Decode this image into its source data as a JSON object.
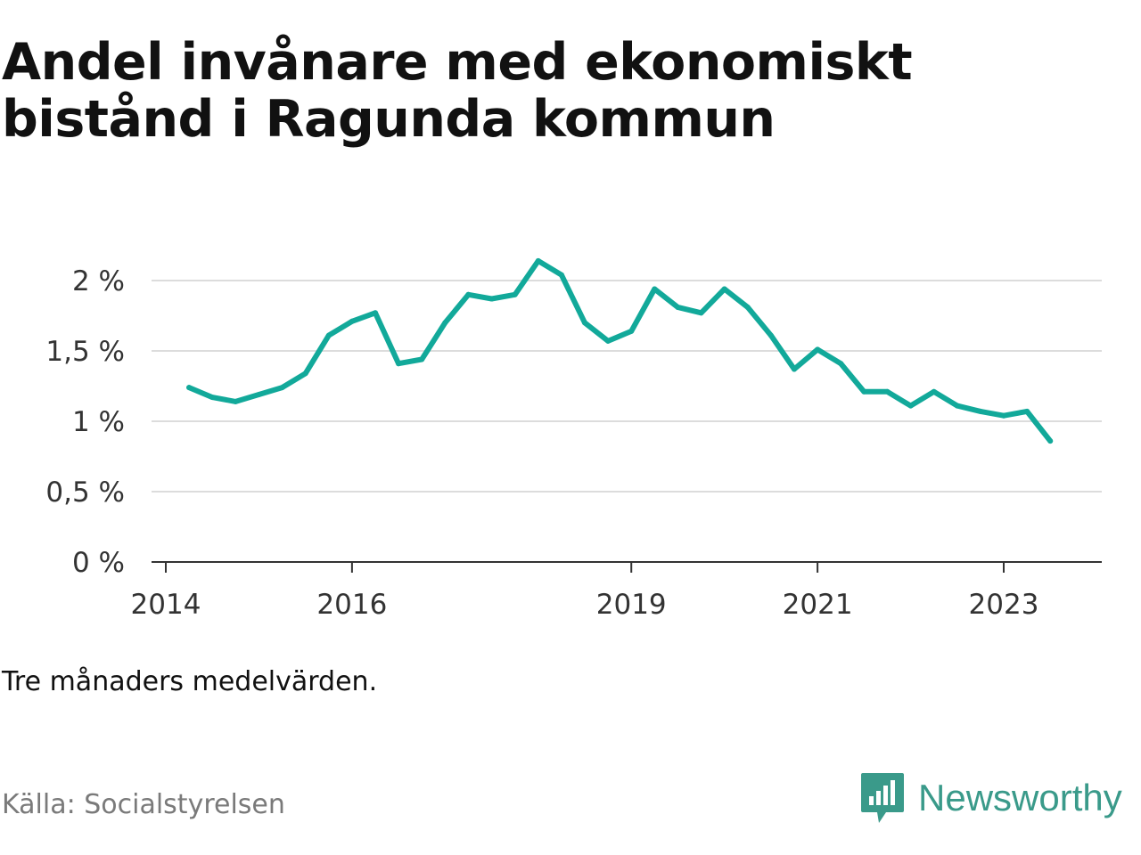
{
  "chart_data": {
    "type": "line",
    "title": "Andel invånare med ekonomiskt bistånd i Ragunda kommun",
    "note": "Tre månaders medelvärden.",
    "source": "Källa: Socialstyrelsen",
    "x_ticks": [
      {
        "year": 2014,
        "label": "2014"
      },
      {
        "year": 2016,
        "label": "2016"
      },
      {
        "year": 2019,
        "label": "2019"
      },
      {
        "year": 2021,
        "label": "2021"
      },
      {
        "year": 2023,
        "label": "2023"
      }
    ],
    "y_ticks": [
      {
        "value": 0,
        "label": "0 %"
      },
      {
        "value": 0.5,
        "label": "0,5 %"
      },
      {
        "value": 1,
        "label": "1 %"
      },
      {
        "value": 1.5,
        "label": "1,5 %"
      },
      {
        "value": 2,
        "label": "2 %"
      }
    ],
    "ylim": [
      0,
      2.1
    ],
    "xlim": [
      2013.9,
      2024.0
    ],
    "grid": true,
    "series": [
      {
        "color": "#12a99a",
        "points": [
          {
            "x": 2014.25,
            "y": 1.24
          },
          {
            "x": 2014.5,
            "y": 1.17
          },
          {
            "x": 2014.75,
            "y": 1.14
          },
          {
            "x": 2015.0,
            "y": 1.19
          },
          {
            "x": 2015.25,
            "y": 1.24
          },
          {
            "x": 2015.5,
            "y": 1.34
          },
          {
            "x": 2015.75,
            "y": 1.61
          },
          {
            "x": 2016.0,
            "y": 1.71
          },
          {
            "x": 2016.25,
            "y": 1.77
          },
          {
            "x": 2016.5,
            "y": 1.41
          },
          {
            "x": 2016.75,
            "y": 1.44
          },
          {
            "x": 2017.0,
            "y": 1.7
          },
          {
            "x": 2017.25,
            "y": 1.9
          },
          {
            "x": 2017.5,
            "y": 1.87
          },
          {
            "x": 2017.75,
            "y": 1.9
          },
          {
            "x": 2018.0,
            "y": 2.14
          },
          {
            "x": 2018.25,
            "y": 2.04
          },
          {
            "x": 2018.5,
            "y": 1.7
          },
          {
            "x": 2018.75,
            "y": 1.57
          },
          {
            "x": 2019.0,
            "y": 1.64
          },
          {
            "x": 2019.25,
            "y": 1.94
          },
          {
            "x": 2019.5,
            "y": 1.81
          },
          {
            "x": 2019.75,
            "y": 1.77
          },
          {
            "x": 2020.0,
            "y": 1.94
          },
          {
            "x": 2020.25,
            "y": 1.81
          },
          {
            "x": 2020.5,
            "y": 1.61
          },
          {
            "x": 2020.75,
            "y": 1.37
          },
          {
            "x": 2021.0,
            "y": 1.51
          },
          {
            "x": 2021.25,
            "y": 1.41
          },
          {
            "x": 2021.5,
            "y": 1.21
          },
          {
            "x": 2021.75,
            "y": 1.21
          },
          {
            "x": 2022.0,
            "y": 1.11
          },
          {
            "x": 2022.25,
            "y": 1.21
          },
          {
            "x": 2022.5,
            "y": 1.11
          },
          {
            "x": 2022.75,
            "y": 1.07
          },
          {
            "x": 2023.0,
            "y": 1.04
          },
          {
            "x": 2023.25,
            "y": 1.07
          },
          {
            "x": 2023.5,
            "y": 0.86
          }
        ]
      }
    ]
  },
  "brand": {
    "name": "Newsworthy",
    "color": "#3a9a8a",
    "icon": "newsworthy-logo-icon"
  },
  "colors": {
    "grid": "#dcdcdc",
    "axis": "#333333",
    "line": "#12a99a"
  }
}
